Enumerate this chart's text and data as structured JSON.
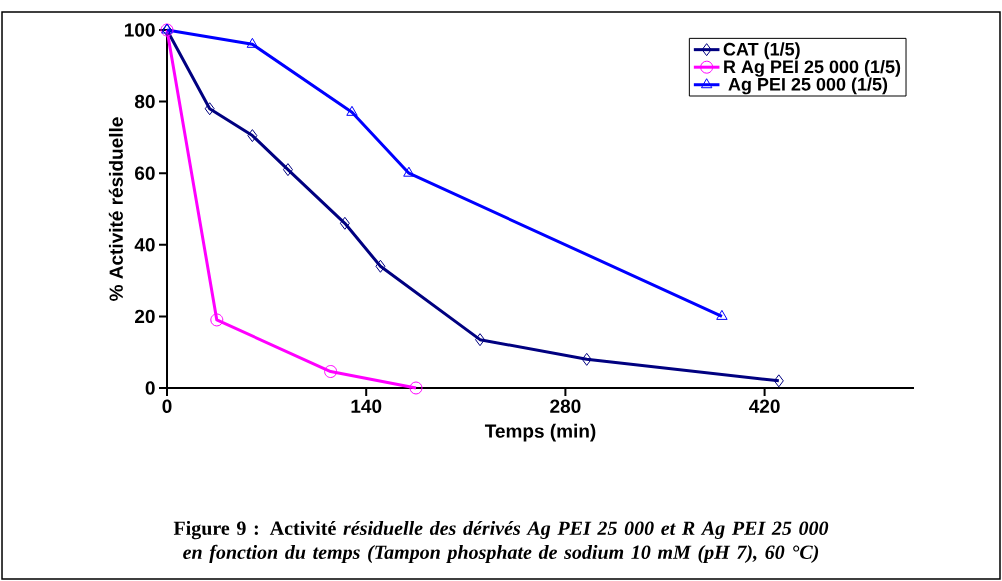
{
  "chart_data": {
    "type": "line",
    "title": "Figure 9 : Activité *résiduelle des dérivés Ag PEI 25 000 et R Ag PEI 25 000 en fonction du temps (Tampon phosphate de sodium 10 mM (pH 7), 60 °C)*",
    "xlabel": "Temps (min)",
    "ylabel": "% Activité résiduelle",
    "xlim": [
      0,
      525
    ],
    "xticks": [
      0,
      140,
      280,
      420
    ],
    "ylim": [
      0,
      100
    ],
    "yticks": [
      0,
      20,
      40,
      60,
      80,
      100
    ],
    "grid": false,
    "legend": "top right",
    "line_style": "solid",
    "series": [
      {
        "name": "CAT (1/5)",
        "color": "#000080",
        "marker": "diamond",
        "x": [
          0,
          30,
          60,
          85,
          125,
          150,
          220,
          295,
          430
        ],
        "values": [
          100,
          78,
          70.5,
          61,
          46,
          34,
          13.5,
          8,
          2
        ]
      },
      {
        "name": "R Ag PEI 25 000 (1/5)",
        "color": "#ff00ff",
        "marker": "circle",
        "x": [
          0,
          35,
          115,
          175
        ],
        "values": [
          100,
          19,
          4.6,
          0
        ]
      },
      {
        "name": " Ag PEI 25 000 (1/5)",
        "color": "#0000ff",
        "marker": "triangle",
        "x": [
          0,
          60,
          130,
          170,
          390
        ],
        "values": [
          100,
          96,
          77,
          60,
          20
        ]
      }
    ]
  }
}
